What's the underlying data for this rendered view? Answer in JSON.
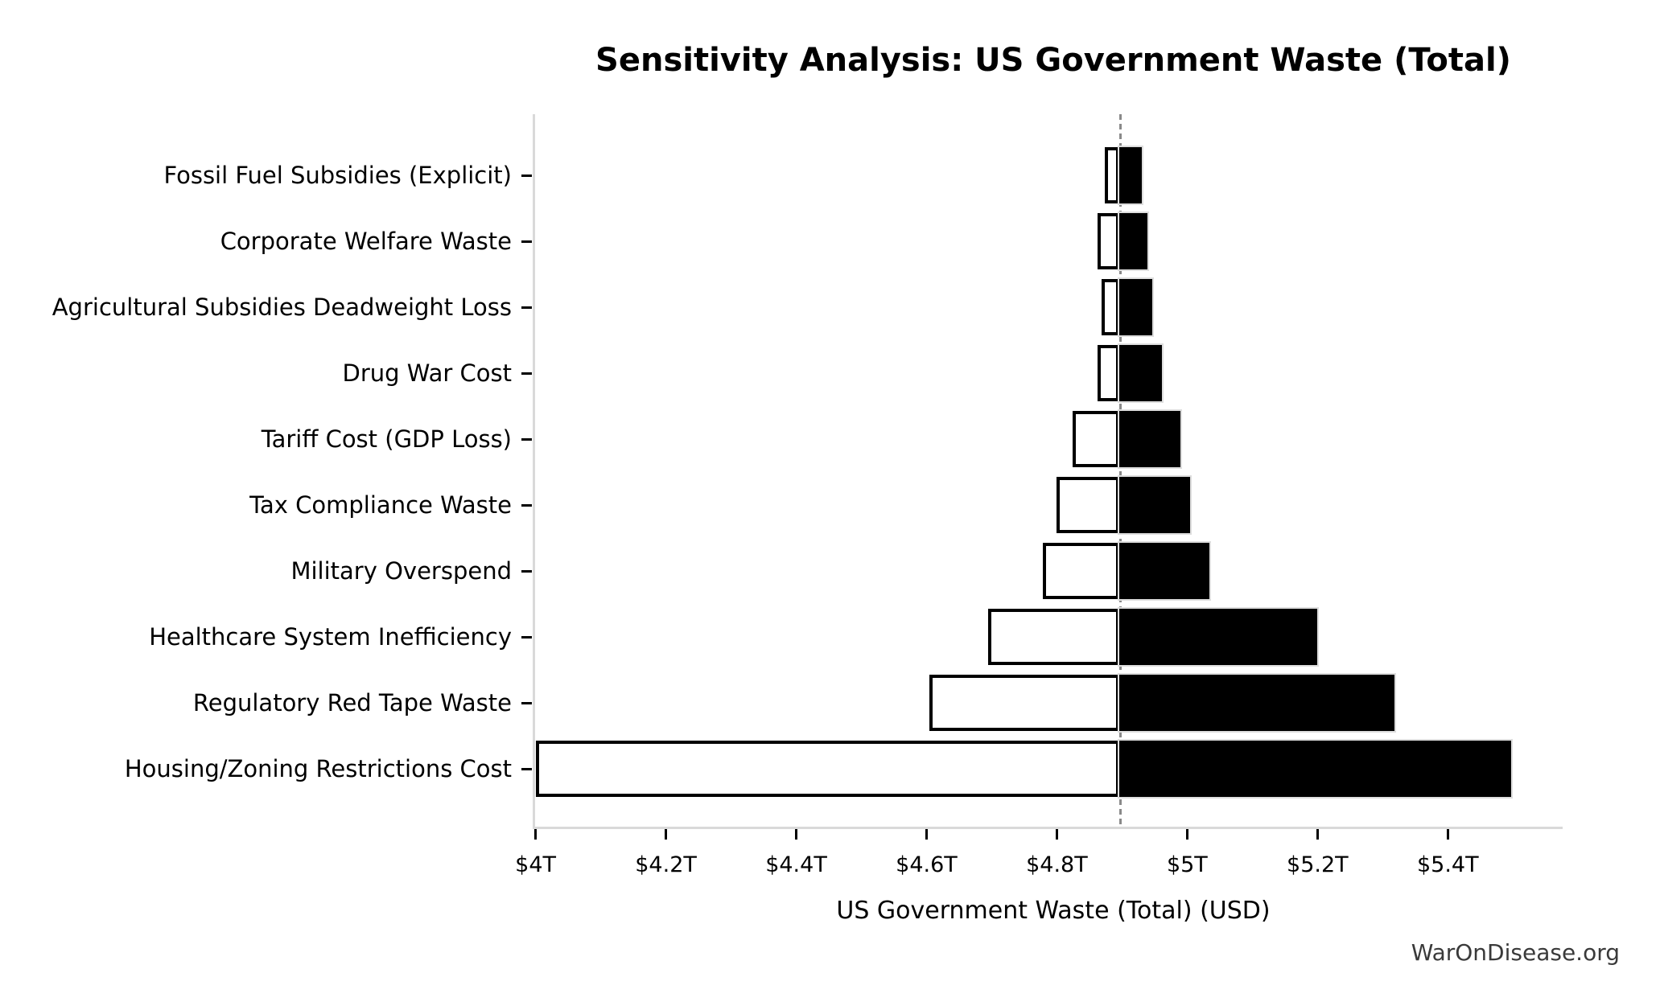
{
  "title": "Sensitivity Analysis: US Government Waste (Total)",
  "watermark": "WarOnDisease.org",
  "chart_data": {
    "type": "bar",
    "subtype": "tornado-sensitivity",
    "title": "Sensitivity Analysis: US Government Waste (Total)",
    "xlabel": "US Government Waste (Total) (USD)",
    "unit": "trillion USD",
    "base_value": 4.896,
    "xlim": [
      3.998,
      5.575
    ],
    "x_ticks": {
      "values": [
        4.0,
        4.2,
        4.4,
        4.6,
        4.8,
        5.0,
        5.2,
        5.4
      ],
      "labels": [
        "$4T",
        "$4.2T",
        "$4.4T",
        "$4.6T",
        "$4.8T",
        "$5T",
        "$5.2T",
        "$5.4T"
      ]
    },
    "categories": [
      "Fossil Fuel Subsidies (Explicit)",
      "Corporate Welfare Waste",
      "Agricultural Subsidies Deadweight Loss",
      "Drug War Cost",
      "Tariff Cost (GDP Loss)",
      "Tax Compliance Waste",
      "Military Overspend",
      "Healthcare System Inefficiency",
      "Regulatory Red Tape Waste",
      "Housing/Zoning Restrictions Cost"
    ],
    "series": [
      {
        "name": "low",
        "values": [
          4.873,
          4.862,
          4.869,
          4.863,
          4.824,
          4.799,
          4.778,
          4.694,
          4.604,
          4.0
        ]
      },
      {
        "name": "high",
        "values": [
          4.93,
          4.939,
          4.946,
          4.961,
          4.99,
          5.005,
          5.034,
          5.2,
          5.318,
          5.497
        ]
      }
    ],
    "legend": "none",
    "grid": false,
    "baseline_marker": "vertical dashed gray line at base value",
    "colors": {
      "low_bar": "#ffffff",
      "high_bar": "#000000",
      "bar_edge": "#000000",
      "spine": "#d9d9d9",
      "baseline": "#8a8a8a",
      "text": "#000000",
      "watermark_text": "#3a3a3a"
    }
  }
}
